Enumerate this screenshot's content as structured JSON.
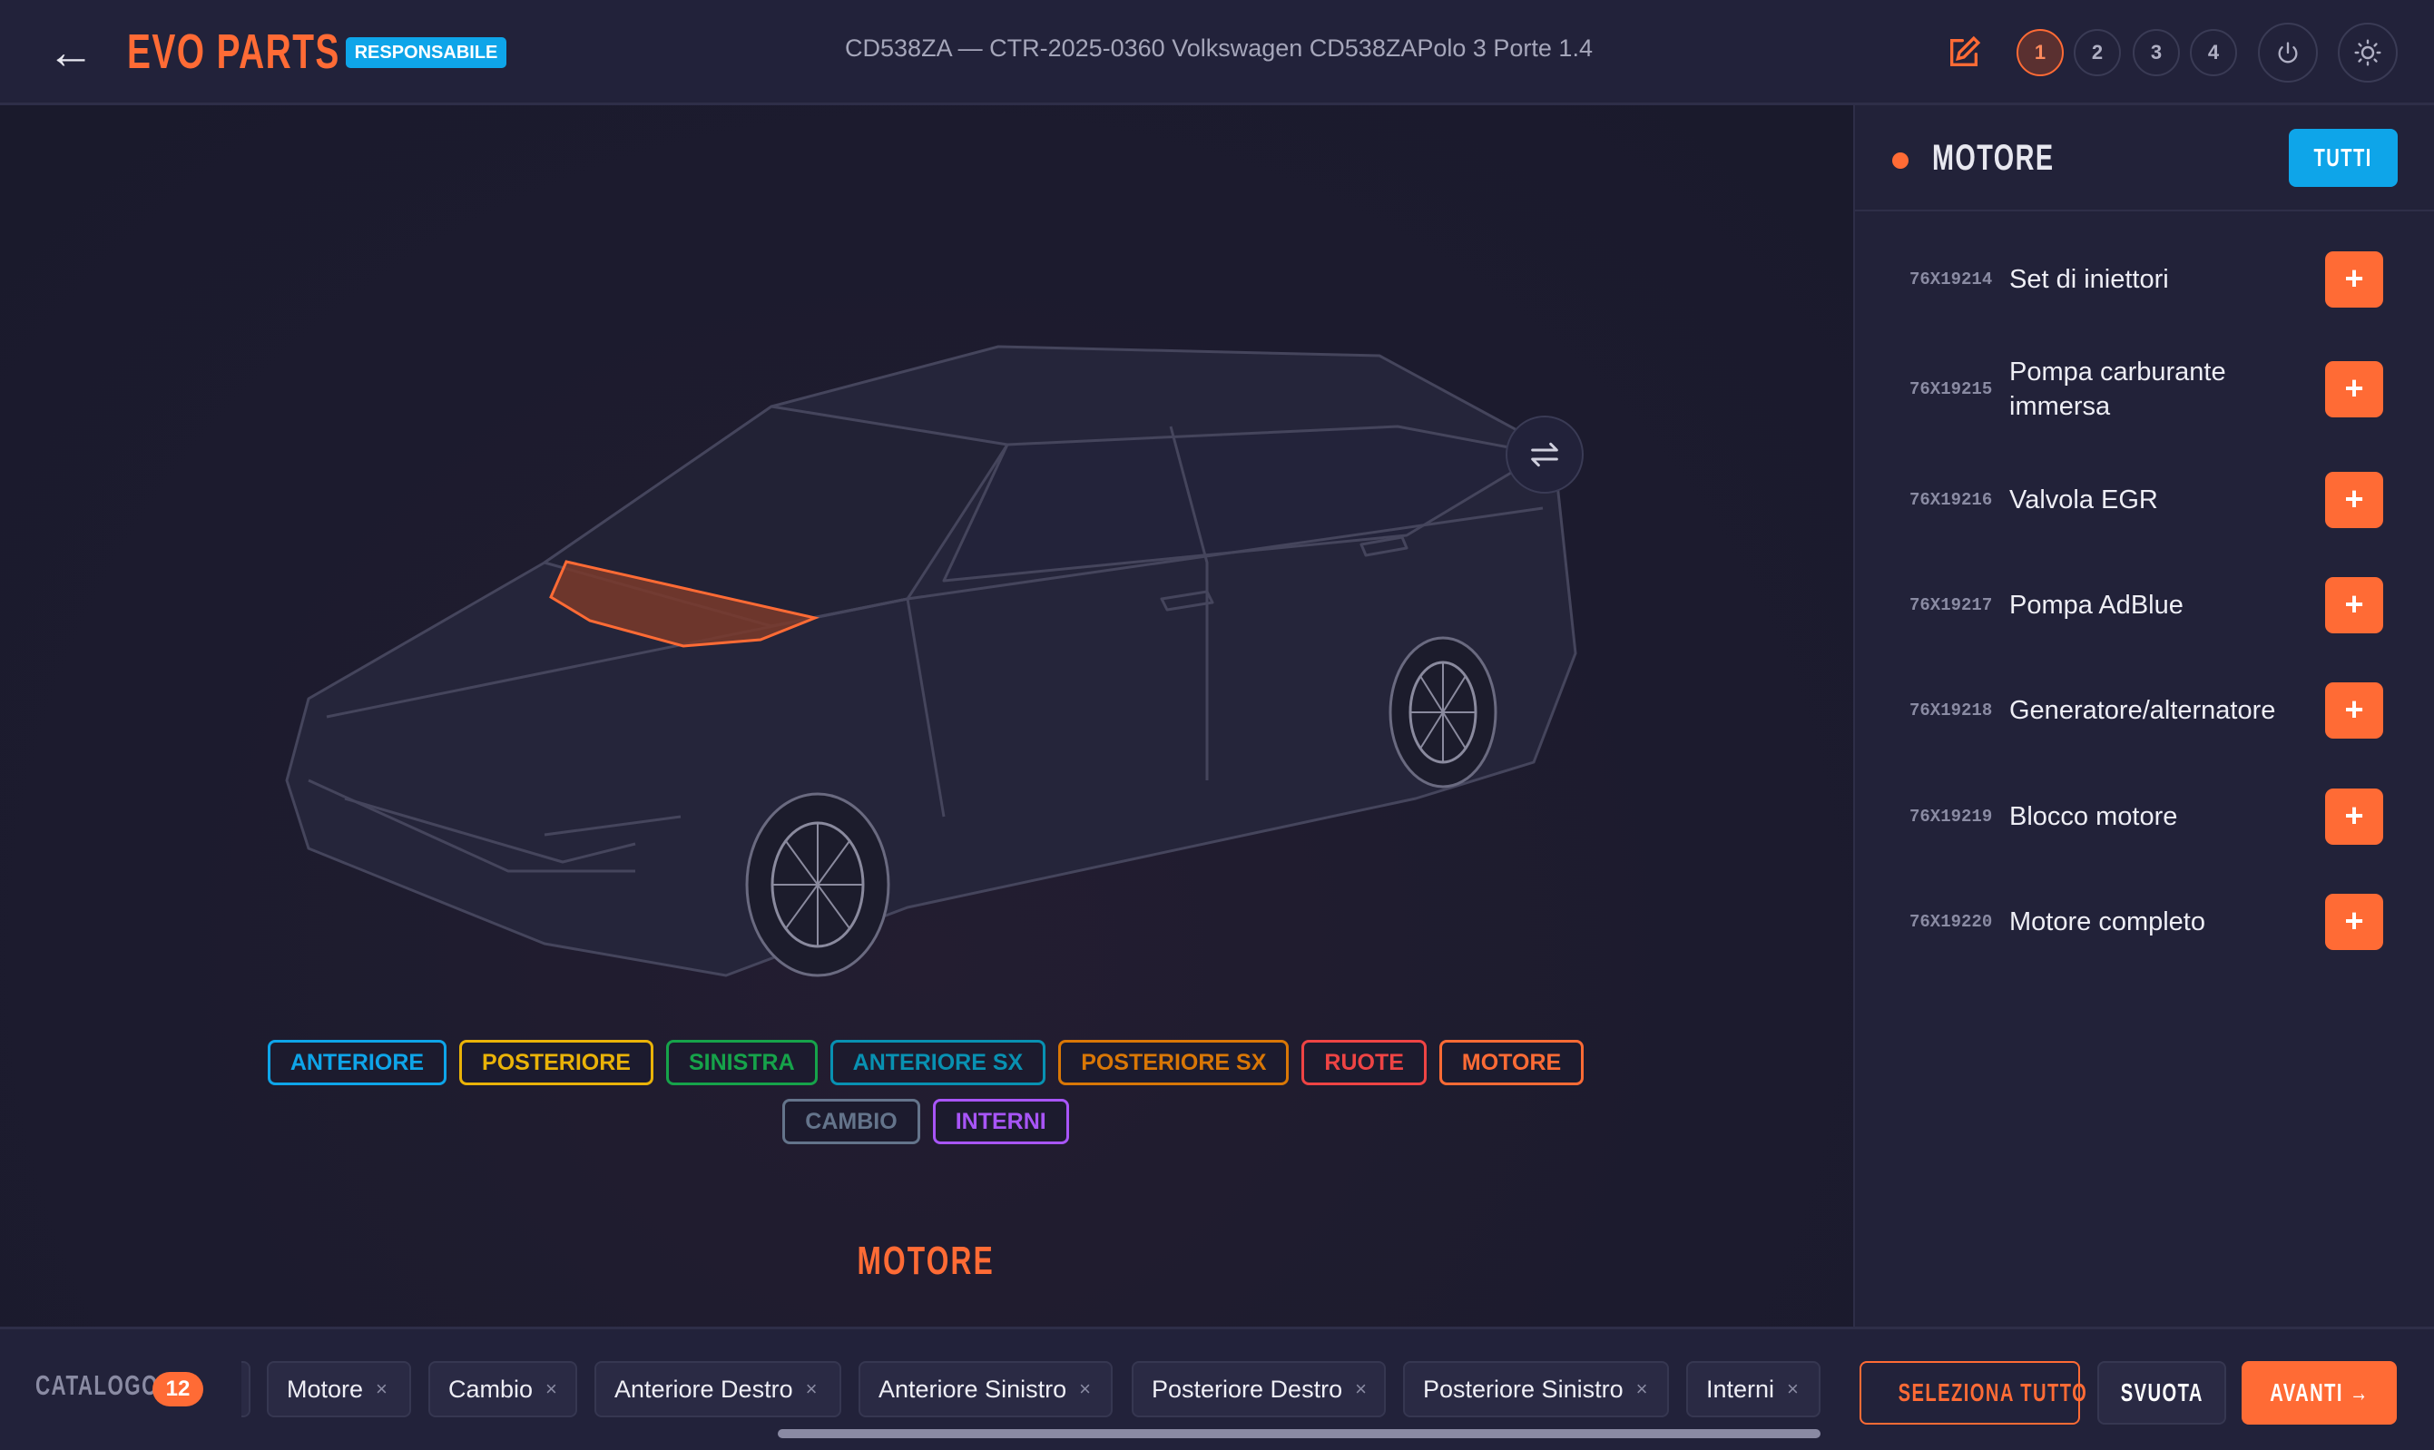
{
  "colors": {
    "accent": "#ff6b35",
    "brand_blue": "#0ea5e9"
  },
  "header": {
    "back_icon": "arrow-left-icon",
    "back": "←",
    "logo": "EVO PARTS",
    "role_badge": "RESPONSABILE",
    "title": "CD538ZA — CTR-2025-0360 Volkswagen CD538ZAPolo 3 Porte 1.4",
    "steps": [
      "1",
      "2",
      "3",
      "4"
    ],
    "active_step": "1",
    "icons": [
      "edit-icon",
      "power-icon",
      "sun-icon"
    ]
  },
  "viewer": {
    "swap_icon": "swap-arrows-icon",
    "selected_zone": "MOTORE",
    "zone_tags": [
      {
        "label": "ANTERIORE",
        "color": "#0ea5e9"
      },
      {
        "label": "POSTERIORE",
        "color": "#eab308"
      },
      {
        "label": "SINISTRA",
        "color": "#16a34a"
      },
      {
        "label": "ANTERIORE SX",
        "color": "#0891b2"
      },
      {
        "label": "POSTERIORE SX",
        "color": "#d97706"
      },
      {
        "label": "RUOTE",
        "color": "#ef4444"
      },
      {
        "label": "MOTORE",
        "color": "#ff6b35"
      },
      {
        "label": "CAMBIO",
        "color": "#64748b"
      },
      {
        "label": "INTERNI",
        "color": "#a855f7"
      }
    ]
  },
  "panel": {
    "title": "MOTORE",
    "all_button": "TUTTI",
    "add_label": "+",
    "parts": [
      {
        "code": "76X19214",
        "name": "Set di iniettori"
      },
      {
        "code": "76X19215",
        "name": "Pompa carburante immersa"
      },
      {
        "code": "76X19216",
        "name": "Valvola EGR"
      },
      {
        "code": "76X19217",
        "name": "Pompa AdBlue"
      },
      {
        "code": "76X19218",
        "name": "Generatore/alternatore"
      },
      {
        "code": "76X19219",
        "name": "Blocco motore"
      },
      {
        "code": "76X19220",
        "name": "Motore completo"
      }
    ]
  },
  "footer": {
    "catalog_label": "CATALOGO",
    "catalog_count": "12",
    "remove_label": "×",
    "chips": [
      "Motore",
      "Cambio",
      "Anteriore Destro",
      "Anteriore Sinistro",
      "Posteriore Destro",
      "Posteriore Sinistro",
      "Interni"
    ],
    "select_all": "SELEZIONA TUTTO",
    "clear": "SVUOTA",
    "next": "AVANTI →"
  }
}
